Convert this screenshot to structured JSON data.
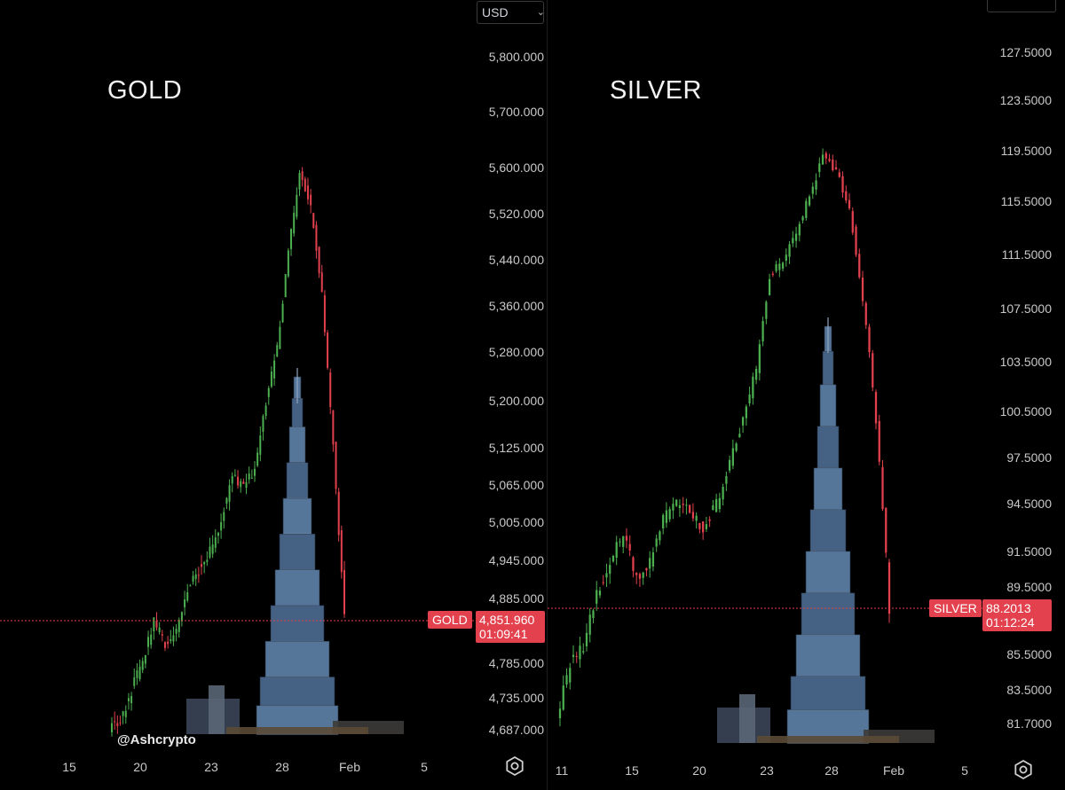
{
  "currency_selector": {
    "label": "USD",
    "chevron_icon": "chevron-down-icon"
  },
  "watermark": "@Ashcrypto",
  "settings_icon": "gear-icon",
  "chart_data": [
    {
      "type": "candlestick",
      "title": "GOLD",
      "symbol": "GOLD",
      "currency": "USD",
      "last_price": "4,851.960",
      "countdown": "01:09:41",
      "y_ticks": [
        "5,800.000",
        "5,700.000",
        "5,600.000",
        "5,520.000",
        "5,440.000",
        "5,360.000",
        "5,280.000",
        "5,200.000",
        "5,125.000",
        "5,065.000",
        "5,005.000",
        "4,945.000",
        "4,885.000",
        "4,785.000",
        "4,735.000",
        "4,687.000"
      ],
      "y_tick_values": [
        5800,
        5700,
        5600,
        5520,
        5440,
        5360,
        5280,
        5200,
        5125,
        5065,
        5005,
        4945,
        4885,
        4785,
        4735,
        4687
      ],
      "x_ticks": [
        "15",
        "20",
        "23",
        "28",
        "Feb",
        "5"
      ],
      "x_tick_dates": [
        "Jan 15",
        "Jan 20",
        "Jan 23",
        "Jan 28",
        "Feb 1",
        "Feb 5"
      ],
      "price_line": 4851.96,
      "colors": {
        "up": "#4caf50",
        "down": "#e2414d"
      },
      "approx_close_path": [
        4690,
        4700,
        4745,
        4790,
        4850,
        4815,
        4830,
        4900,
        4930,
        4960,
        5010,
        5080,
        5060,
        5090,
        5200,
        5290,
        5450,
        5590,
        5530,
        5380,
        5130,
        4852
      ]
    },
    {
      "type": "candlestick",
      "title": "SILVER",
      "symbol": "SILVER",
      "currency": "USD",
      "last_price": "88.2013",
      "countdown": "01:12:24",
      "y_ticks": [
        "127.5000",
        "123.5000",
        "119.5000",
        "115.5000",
        "111.5000",
        "107.5000",
        "103.5000",
        "100.5000",
        "97.5000",
        "94.5000",
        "91.5000",
        "89.5000",
        "85.5000",
        "83.5000",
        "81.7000"
      ],
      "y_tick_values": [
        127.5,
        123.5,
        119.5,
        115.5,
        111.5,
        107.5,
        103.5,
        100.5,
        97.5,
        94.5,
        91.5,
        89.5,
        85.5,
        83.5,
        81.7
      ],
      "x_ticks": [
        "11",
        "15",
        "20",
        "23",
        "28",
        "Feb",
        "5"
      ],
      "x_tick_dates": [
        "Jan 11",
        "Jan 15",
        "Jan 20",
        "Jan 23",
        "Jan 28",
        "Feb 1",
        "Feb 5"
      ],
      "price_line": 88.2013,
      "colors": {
        "up": "#4caf50",
        "down": "#e2414d"
      },
      "approx_close_path": [
        82,
        85,
        86,
        89,
        91,
        92.5,
        90,
        91,
        93.5,
        94.5,
        94,
        93,
        94.5,
        97,
        100,
        103,
        110,
        111,
        113,
        116,
        119,
        118,
        115,
        108,
        100,
        88.2
      ]
    }
  ]
}
